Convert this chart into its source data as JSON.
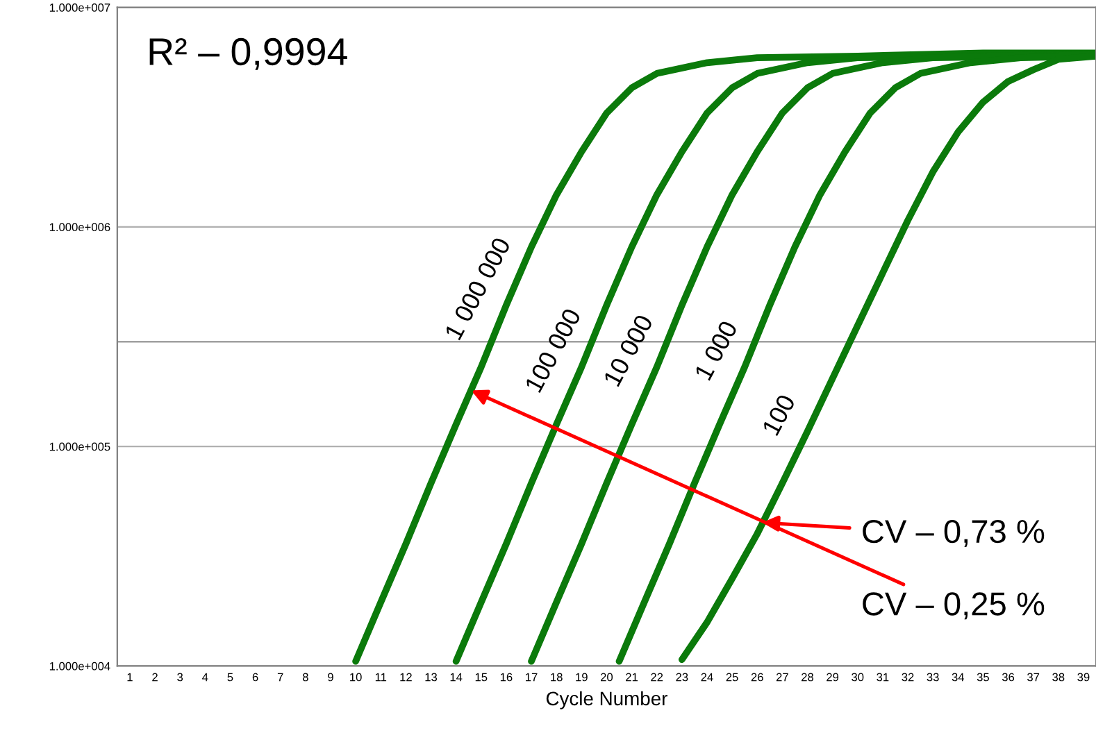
{
  "chart_data": {
    "type": "line",
    "xlabel": "Cycle Number",
    "log": "y",
    "grid": "y",
    "legend": false,
    "marker": "none",
    "line_style": "solid",
    "xlim": [
      0.5,
      39.5
    ],
    "xticks": [
      1,
      2,
      3,
      4,
      5,
      6,
      7,
      8,
      9,
      10,
      11,
      12,
      13,
      14,
      15,
      16,
      17,
      18,
      19,
      20,
      21,
      22,
      23,
      24,
      25,
      26,
      27,
      28,
      29,
      30,
      31,
      32,
      33,
      34,
      35,
      36,
      37,
      38,
      39
    ],
    "ylim": [
      10000,
      10000000
    ],
    "yticks": [
      {
        "value": 10000,
        "label": "1.000e+004"
      },
      {
        "value": 100000,
        "label": "1.000e+005"
      },
      {
        "value": 1000000,
        "label": "1.000e+006"
      },
      {
        "value": 10000000,
        "label": "1.000e+007"
      }
    ],
    "ref_lines": [
      {
        "axis": "y",
        "value": 300000,
        "color": "#a0a0a0"
      }
    ],
    "series": [
      {
        "name": "1 000 000",
        "color": "#0b7a0b",
        "x": [
          10,
          11,
          12,
          13,
          14,
          15,
          16,
          17,
          18,
          19,
          20,
          21,
          22,
          24,
          26,
          30,
          35,
          39.5
        ],
        "values": [
          10500,
          19500,
          36000,
          68000,
          126000,
          230000,
          440000,
          810000,
          1400000,
          2200000,
          3300000,
          4300000,
          5000000,
          5600000,
          5900000,
          6000000,
          6200000,
          6200000
        ]
      },
      {
        "name": "100 000",
        "color": "#0b7a0b",
        "x": [
          14,
          15,
          16,
          17,
          18,
          19,
          20,
          21,
          22,
          23,
          24,
          25,
          26,
          28,
          30,
          34,
          39.5
        ],
        "values": [
          10500,
          19500,
          36000,
          68000,
          126000,
          230000,
          440000,
          810000,
          1400000,
          2200000,
          3300000,
          4300000,
          5000000,
          5600000,
          5900000,
          6000000,
          6100000
        ]
      },
      {
        "name": "10 000",
        "color": "#0b7a0b",
        "x": [
          17,
          18,
          19,
          20,
          21,
          22,
          23,
          24,
          25,
          26,
          27,
          28,
          29,
          31,
          33,
          37,
          39.5
        ],
        "values": [
          10500,
          19500,
          36000,
          68000,
          126000,
          230000,
          440000,
          810000,
          1400000,
          2200000,
          3300000,
          4300000,
          5000000,
          5600000,
          5900000,
          6000000,
          6100000
        ]
      },
      {
        "name": "1 000",
        "color": "#0b7a0b",
        "x": [
          20.5,
          21.5,
          22.5,
          23.5,
          24.5,
          25.5,
          26.5,
          27.5,
          28.5,
          29.5,
          30.5,
          31.5,
          32.5,
          34.5,
          36.5,
          39.5
        ],
        "values": [
          10500,
          19500,
          36000,
          68000,
          126000,
          230000,
          440000,
          810000,
          1400000,
          2200000,
          3300000,
          4300000,
          5000000,
          5600000,
          5900000,
          6000000
        ]
      },
      {
        "name": "100",
        "color": "#0b7a0b",
        "x": [
          23,
          24,
          25,
          26,
          27,
          28,
          29,
          30,
          31,
          32,
          33,
          34,
          35,
          36,
          37,
          38,
          39.5
        ],
        "values": [
          10700,
          15800,
          25000,
          40000,
          68000,
          117000,
          204000,
          355000,
          617000,
          1070000,
          1780000,
          2700000,
          3700000,
          4600000,
          5200000,
          5800000,
          6000000
        ]
      }
    ],
    "annotations": [
      "R² – 0,9994",
      {
        "text": "CV – 0,73 %",
        "x": 26.2,
        "y": 45000
      },
      {
        "text": "CV – 0,25 %",
        "x": 14.6,
        "y": 180000
      }
    ]
  }
}
